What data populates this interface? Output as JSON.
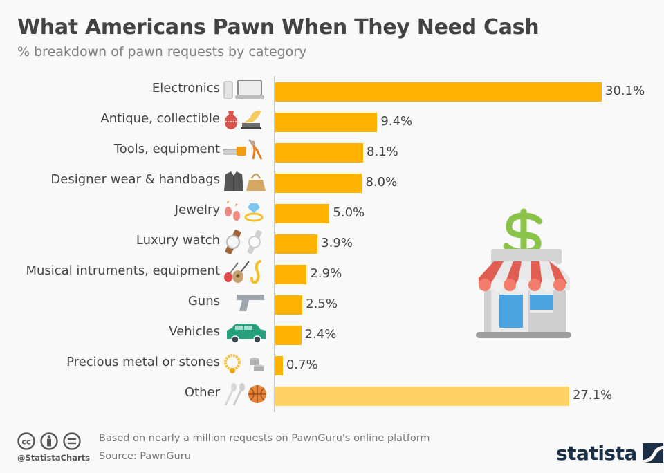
{
  "header": {
    "title": "What Americans Pawn When They Need Cash",
    "subtitle": "% breakdown of pawn requests by category"
  },
  "colors": {
    "bar": "#ffb300",
    "bar_other": "#ffd166",
    "axis": "#c9c9c9",
    "title": "#434343",
    "brand": "#1b2f47"
  },
  "rows": [
    {
      "label": "Electronics",
      "value_label": "30.1%",
      "icons": [
        "smartphone-icon",
        "laptop-icon"
      ]
    },
    {
      "label": "Antique, collectible",
      "value_label": "9.4%",
      "icons": [
        "vase-icon",
        "gramophone-icon"
      ]
    },
    {
      "label": "Tools, equipment",
      "value_label": "8.1%",
      "icons": [
        "chainsaw-icon",
        "pruning-shears-icon"
      ]
    },
    {
      "label": "Designer wear & handbags",
      "value_label": "8.0%",
      "icons": [
        "jacket-icon",
        "handbag-icon"
      ]
    },
    {
      "label": "Jewelry",
      "value_label": "5.0%",
      "icons": [
        "earrings-icon",
        "diamond-ring-icon"
      ]
    },
    {
      "label": "Luxury watch",
      "value_label": "3.9%",
      "icons": [
        "leather-watch-icon",
        "steel-watch-icon"
      ]
    },
    {
      "label": "Musical intruments, equipment",
      "value_label": "2.9%",
      "icons": [
        "electric-guitar-icon",
        "acoustic-guitar-icon",
        "saxophone-icon"
      ]
    },
    {
      "label": "Guns",
      "value_label": "2.5%",
      "icons": [
        "pistol-icon"
      ]
    },
    {
      "label": "Vehicles",
      "value_label": "2.4%",
      "icons": [
        "car-icon"
      ]
    },
    {
      "label": "Precious metal or stones",
      "value_label": "0.7%",
      "icons": [
        "gold-necklace-icon",
        "coins-icon"
      ]
    },
    {
      "label": "Other",
      "value_label": "27.1%",
      "icons": [
        "spoons-icon",
        "basketball-icon"
      ]
    }
  ],
  "illustration": "pawn-shop-dollar-icon",
  "footer": {
    "handle": "@StatistaCharts",
    "note": "Based on nearly a million requests on PawnGuru's online platform",
    "source": "Source: PawnGuru",
    "license_icons": [
      "cc-icon",
      "attribution-icon",
      "no-derivatives-icon"
    ],
    "brand": "statista"
  },
  "chart_data": {
    "type": "bar",
    "orientation": "horizontal",
    "title": "What Americans Pawn When They Need Cash",
    "subtitle": "% breakdown of pawn requests by category",
    "categories": [
      "Electronics",
      "Antique, collectible",
      "Tools, equipment",
      "Designer wear & handbags",
      "Jewelry",
      "Luxury watch",
      "Musical intruments, equipment",
      "Guns",
      "Vehicles",
      "Precious metal or stones",
      "Other"
    ],
    "values": [
      30.1,
      9.4,
      8.1,
      8.0,
      5.0,
      3.9,
      2.9,
      2.5,
      2.4,
      0.7,
      27.1
    ],
    "unit": "%",
    "xlabel": "",
    "ylabel": "",
    "xlim": [
      0,
      31
    ],
    "grid": false,
    "legend": null,
    "data_labels": true,
    "source": "PawnGuru",
    "note": "Based on nearly a million requests on PawnGuru's online platform"
  }
}
